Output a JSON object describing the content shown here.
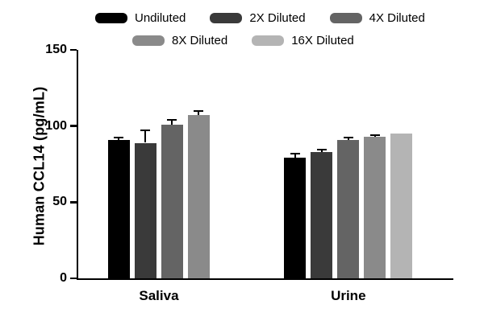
{
  "chart_data": {
    "type": "bar",
    "title": "",
    "xlabel": "",
    "ylabel": "Human CCL14 (pg/mL)",
    "categories": [
      "Saliva",
      "Urine"
    ],
    "y_ticks": [
      0,
      50,
      100,
      150
    ],
    "ylim": [
      0,
      150
    ],
    "grid": false,
    "legend_position": "top",
    "error_color": "#000000",
    "series": [
      {
        "name": "Undiluted",
        "color": "#000000",
        "values": [
          91,
          79
        ],
        "errors": [
          1.5,
          3
        ]
      },
      {
        "name": "2X Diluted",
        "color": "#3a3a3a",
        "values": [
          89,
          83
        ],
        "errors": [
          8,
          1.5
        ]
      },
      {
        "name": "4X Diluted",
        "color": "#646464",
        "values": [
          101,
          91
        ],
        "errors": [
          3,
          1.5
        ]
      },
      {
        "name": "8X Diluted",
        "color": "#8a8a8a",
        "values": [
          107,
          93
        ],
        "errors": [
          3,
          1
        ]
      },
      {
        "name": "16X Diluted",
        "color": "#b4b4b4",
        "values": [
          null,
          95
        ],
        "errors": [
          null,
          0
        ]
      }
    ]
  }
}
